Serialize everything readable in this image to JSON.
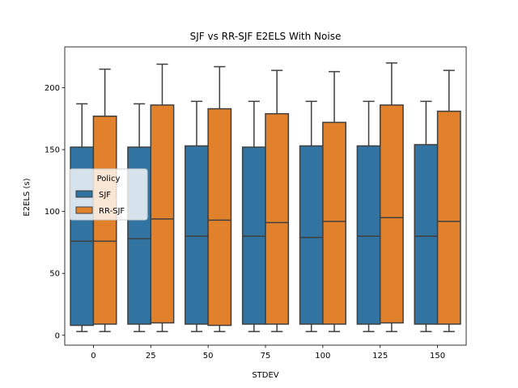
{
  "chart_data": {
    "type": "box",
    "title": "SJF vs RR-SJF E2ELS With Noise",
    "xlabel": "STDEV",
    "ylabel": "E2ELS (s)",
    "categories": [
      "0",
      "25",
      "50",
      "75",
      "100",
      "125",
      "150"
    ],
    "ylim": [
      -8,
      233
    ],
    "yticks": [
      0,
      50,
      100,
      150,
      200
    ],
    "legend": {
      "title": "Policy",
      "position": "center-left"
    },
    "grid": false,
    "series": [
      {
        "name": "SJF",
        "color": "#3274a1",
        "boxes": [
          {
            "whislo": 3,
            "q1": 8,
            "med": 76,
            "q3": 152,
            "whishi": 187
          },
          {
            "whislo": 3,
            "q1": 9,
            "med": 78,
            "q3": 152,
            "whishi": 187
          },
          {
            "whislo": 3,
            "q1": 9,
            "med": 80,
            "q3": 153,
            "whishi": 189
          },
          {
            "whislo": 3,
            "q1": 9,
            "med": 80,
            "q3": 152,
            "whishi": 189
          },
          {
            "whislo": 3,
            "q1": 9,
            "med": 79,
            "q3": 153,
            "whishi": 189
          },
          {
            "whislo": 3,
            "q1": 9,
            "med": 80,
            "q3": 153,
            "whishi": 189
          },
          {
            "whislo": 3,
            "q1": 9,
            "med": 80,
            "q3": 154,
            "whishi": 189
          }
        ]
      },
      {
        "name": "RR-SJF",
        "color": "#e1812c",
        "boxes": [
          {
            "whislo": 3,
            "q1": 9,
            "med": 76,
            "q3": 177,
            "whishi": 215
          },
          {
            "whislo": 3,
            "q1": 10,
            "med": 94,
            "q3": 186,
            "whishi": 219
          },
          {
            "whislo": 3,
            "q1": 8,
            "med": 93,
            "q3": 183,
            "whishi": 217
          },
          {
            "whislo": 3,
            "q1": 9,
            "med": 91,
            "q3": 179,
            "whishi": 214
          },
          {
            "whislo": 3,
            "q1": 9,
            "med": 92,
            "q3": 172,
            "whishi": 213
          },
          {
            "whislo": 3,
            "q1": 10,
            "med": 95,
            "q3": 186,
            "whishi": 220
          },
          {
            "whislo": 3,
            "q1": 9,
            "med": 92,
            "q3": 181,
            "whishi": 214
          }
        ]
      }
    ]
  }
}
